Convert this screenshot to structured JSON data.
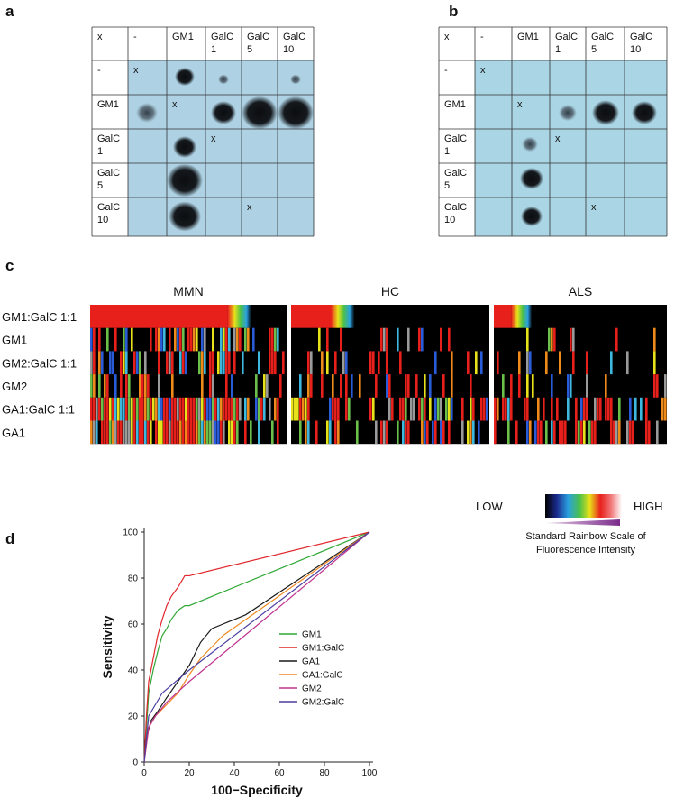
{
  "panel_labels": {
    "a": "a",
    "b": "b",
    "c": "c",
    "d": "d"
  },
  "blot_a": {
    "header": [
      [
        "x"
      ],
      [
        "-"
      ],
      [
        "GM1"
      ],
      [
        "GalC",
        "1"
      ],
      [
        "GalC",
        "5"
      ],
      [
        "GalC",
        "10"
      ]
    ],
    "rows": [
      [
        [
          "-"
        ],
        [
          "x"
        ],
        null,
        null,
        null,
        null
      ],
      [
        [
          "GM1"
        ],
        null,
        [
          "x"
        ],
        null,
        null,
        null
      ],
      [
        [
          "GalC",
          "1"
        ],
        null,
        null,
        [
          "x"
        ],
        null,
        null
      ],
      [
        [
          "GalC",
          "5"
        ],
        null,
        null,
        null,
        null,
        null
      ],
      [
        [
          "GalC",
          "10"
        ],
        null,
        null,
        null,
        [
          "x"
        ],
        null
      ]
    ]
  },
  "blot_b": {
    "header": [
      [
        "x"
      ],
      [
        "-"
      ],
      [
        "GM1"
      ],
      [
        "GalC",
        "1"
      ],
      [
        "GalC",
        "5"
      ],
      [
        "GalC",
        "10"
      ]
    ],
    "rows": [
      [
        [
          "-"
        ],
        [
          "x"
        ],
        null,
        null,
        null,
        null
      ],
      [
        [
          "GM1"
        ],
        null,
        [
          "x"
        ],
        null,
        null,
        null
      ],
      [
        [
          "GalC",
          "1"
        ],
        null,
        null,
        [
          "x"
        ],
        null,
        null
      ],
      [
        [
          "GalC",
          "5"
        ],
        null,
        null,
        null,
        null,
        null
      ],
      [
        [
          "GalC",
          "10"
        ],
        null,
        null,
        null,
        [
          "x"
        ],
        null
      ]
    ]
  },
  "heatmap": {
    "groups": [
      "MMN",
      "HC",
      "ALS"
    ],
    "rows": [
      "GM1:GalC 1:1",
      "GM1",
      "GM2:GalC 1:1",
      "GM2",
      "GA1:GalC 1:1",
      "GA1"
    ],
    "legend": {
      "low": "LOW",
      "high": "HIGH",
      "caption": [
        "Standard Rainbow Scale of",
        "Fluorescence Intensity"
      ]
    }
  },
  "chart_data": {
    "type": "line",
    "xlabel": "100−Specificity",
    "ylabel": "Sensitivity",
    "xlim": [
      0,
      100
    ],
    "ylim": [
      0,
      100
    ],
    "xticks": [
      0,
      20,
      40,
      60,
      80,
      100
    ],
    "yticks": [
      0,
      20,
      40,
      60,
      80,
      100
    ],
    "series": [
      {
        "name": "GM1",
        "color": "#2fa836",
        "x": [
          0,
          1,
          2,
          4,
          6,
          8,
          10,
          12,
          15,
          18,
          20,
          100
        ],
        "values": [
          0,
          15,
          30,
          40,
          48,
          55,
          58,
          62,
          66,
          68,
          68,
          100
        ]
      },
      {
        "name": "GM1:GalC",
        "color": "#e0262b",
        "x": [
          0,
          1,
          2,
          4,
          6,
          8,
          10,
          12,
          15,
          18,
          20,
          100
        ],
        "values": [
          0,
          20,
          35,
          45,
          55,
          62,
          68,
          72,
          76,
          81,
          81,
          100
        ]
      },
      {
        "name": "GA1",
        "color": "#1a1a1a",
        "x": [
          0,
          1,
          3,
          6,
          10,
          15,
          20,
          25,
          30,
          35,
          40,
          45,
          100
        ],
        "values": [
          0,
          10,
          18,
          22,
          28,
          35,
          42,
          52,
          58,
          60,
          62,
          64,
          100
        ]
      },
      {
        "name": "GA1:GalC",
        "color": "#f08a24",
        "x": [
          0,
          2,
          5,
          10,
          15,
          20,
          25,
          30,
          35,
          100
        ],
        "values": [
          0,
          15,
          20,
          25,
          30,
          38,
          45,
          50,
          55,
          100
        ]
      },
      {
        "name": "GM2",
        "color": "#c0338f",
        "x": [
          0,
          2,
          5,
          10,
          20,
          100
        ],
        "values": [
          0,
          15,
          20,
          26,
          35,
          100
        ]
      },
      {
        "name": "GM2:GalC",
        "color": "#4b3fa0",
        "x": [
          0,
          2,
          5,
          8,
          20,
          100
        ],
        "values": [
          0,
          20,
          25,
          30,
          40,
          100
        ]
      }
    ]
  }
}
